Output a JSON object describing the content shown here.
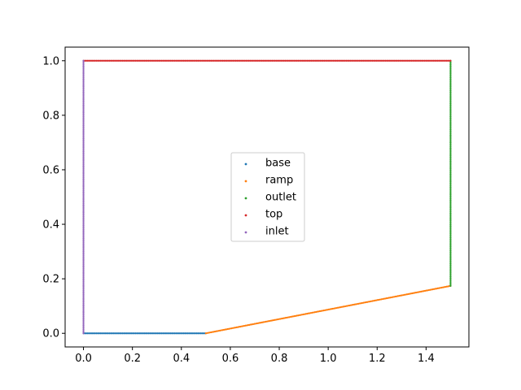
{
  "chart_data": {
    "type": "scatter",
    "xlim": [
      -0.075,
      1.575
    ],
    "ylim": [
      -0.05,
      1.05
    ],
    "x_ticks": [
      0.0,
      0.2,
      0.4,
      0.6,
      0.8,
      1.0,
      1.2,
      1.4
    ],
    "x_tick_labels": [
      "0.0",
      "0.2",
      "0.4",
      "0.6",
      "0.8",
      "1.0",
      "1.2",
      "1.4"
    ],
    "y_ticks": [
      0.0,
      0.2,
      0.4,
      0.6,
      0.8,
      1.0
    ],
    "y_tick_labels": [
      "0.0",
      "0.2",
      "0.4",
      "0.6",
      "0.8",
      "1.0"
    ],
    "grid": false,
    "legend_position": "center",
    "series": [
      {
        "name": "base",
        "color": "#1f77b4",
        "segment": {
          "x": [
            0.0,
            0.5
          ],
          "y": [
            0.0,
            0.0
          ]
        }
      },
      {
        "name": "ramp",
        "color": "#ff7f0e",
        "segment": {
          "x": [
            0.5,
            1.5
          ],
          "y": [
            0.0,
            0.174
          ]
        }
      },
      {
        "name": "outlet",
        "color": "#2ca02c",
        "segment": {
          "x": [
            1.5,
            1.5
          ],
          "y": [
            0.174,
            1.0
          ]
        }
      },
      {
        "name": "top",
        "color": "#d62728",
        "segment": {
          "x": [
            0.0,
            1.5
          ],
          "y": [
            1.0,
            1.0
          ]
        }
      },
      {
        "name": "inlet",
        "color": "#9467bd",
        "segment": {
          "x": [
            0.0,
            0.0
          ],
          "y": [
            0.0,
            1.0
          ]
        }
      }
    ]
  }
}
